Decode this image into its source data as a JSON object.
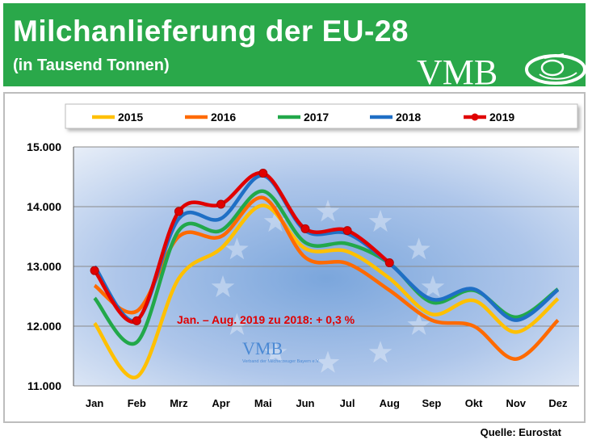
{
  "header": {
    "title": "Milchanlieferung der EU-28",
    "subtitle": "(in Tausend Tonnen)",
    "logo_text": "VMB",
    "bg_color": "#2aa84a"
  },
  "watermark": {
    "logo_text": "VMB",
    "caption": "Verband der Milcherzeuger Bayern e.V."
  },
  "annotation": "Jan. – Aug.  2019 zu 2018: + 0,3 %",
  "source": "Quelle: Eurostat",
  "chart_data": {
    "type": "line",
    "categories": [
      "Jan",
      "Feb",
      "Mrz",
      "Apr",
      "Mai",
      "Jun",
      "Jul",
      "Aug",
      "Sep",
      "Okt",
      "Nov",
      "Dez"
    ],
    "ylim": [
      11000,
      15000
    ],
    "yticks": [
      11000,
      12000,
      13000,
      14000,
      15000
    ],
    "ytick_labels": [
      "11.000",
      "12.000",
      "13.000",
      "14.000",
      "15.000"
    ],
    "grid": true,
    "legend": "top",
    "series": [
      {
        "name": "2015",
        "color": "#ffc000",
        "values": [
          12050,
          11150,
          12800,
          13300,
          14020,
          13300,
          13250,
          12800,
          12200,
          12430,
          11900,
          12460
        ],
        "markers": false
      },
      {
        "name": "2016",
        "color": "#ff6a00",
        "values": [
          12680,
          12250,
          13500,
          13500,
          14150,
          13150,
          13050,
          12600,
          12100,
          12000,
          11450,
          12100
        ],
        "markers": false
      },
      {
        "name": "2017",
        "color": "#22a84a",
        "values": [
          12470,
          11730,
          13600,
          13600,
          14260,
          13400,
          13380,
          13050,
          12400,
          12600,
          12150,
          12620
        ],
        "markers": false
      },
      {
        "name": "2018",
        "color": "#1f6fc5",
        "values": [
          13000,
          12100,
          13800,
          13800,
          14520,
          13600,
          13550,
          13050,
          12450,
          12620,
          12100,
          12610
        ],
        "markers": false
      },
      {
        "name": "2019",
        "color": "#e00000",
        "values": [
          12930,
          12090,
          13920,
          14040,
          14560,
          13630,
          13600,
          13060,
          null,
          null,
          null,
          null
        ],
        "markers": true
      }
    ]
  }
}
